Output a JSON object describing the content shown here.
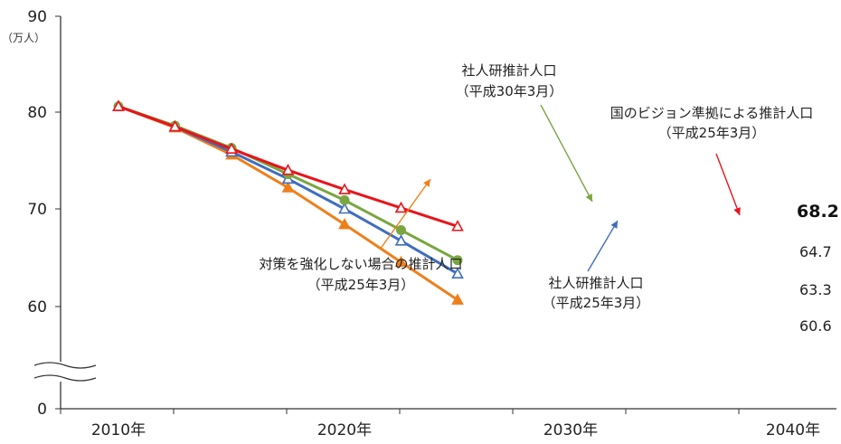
{
  "chart_data": {
    "type": "line",
    "unit_label": "（万人）",
    "yticks": [
      "90",
      "80",
      "70",
      "60",
      "0"
    ],
    "categories": [
      "2010年",
      "2020年",
      "2030年",
      "2040年"
    ],
    "x": [
      2010,
      2015,
      2020,
      2025,
      2030,
      2035,
      2040
    ],
    "ylim": [
      55,
      90
    ],
    "axis_break": true,
    "grid": false,
    "series": [
      {
        "name": "国のビジョン準拠による推計人口（平成25年3月）",
        "color": "#e8141b",
        "marker": "open-triangle",
        "values": [
          80.6,
          78.5,
          76.2,
          74.0,
          72.0,
          70.1,
          68.2
        ],
        "end_label": "68.2"
      },
      {
        "name": "社人研推計人口（平成30年3月）",
        "color": "#79a641",
        "marker": "circle",
        "values": [
          80.6,
          78.6,
          76.3,
          73.6,
          70.9,
          67.8,
          64.7
        ],
        "end_label": "64.7"
      },
      {
        "name": "社人研推計人口（平成25年3月）",
        "color": "#3f6dbf",
        "marker": "open-triangle",
        "values": [
          80.6,
          78.5,
          75.9,
          73.1,
          70.0,
          66.7,
          63.3
        ],
        "end_label": "63.3"
      },
      {
        "name": "対策を強化しない場合の推計人口（平成25年3月）",
        "color": "#ef7f1a",
        "marker": "triangle",
        "values": [
          80.6,
          78.4,
          75.6,
          72.2,
          68.4,
          64.5,
          60.6
        ],
        "end_label": "60.6"
      }
    ],
    "annotations": [
      {
        "lines": [
          "社人研推計人口",
          "（平成30年3月）"
        ],
        "series": 1
      },
      {
        "lines": [
          "国のビジョン準拠による推計人口",
          "（平成25年3月）"
        ],
        "series": 0
      },
      {
        "lines": [
          "対策を強化しない場合の推計人口",
          "（平成25年3月）"
        ],
        "series": 3
      },
      {
        "lines": [
          "社人研推計人口",
          "（平成25年3月）"
        ],
        "series": 2
      }
    ]
  }
}
